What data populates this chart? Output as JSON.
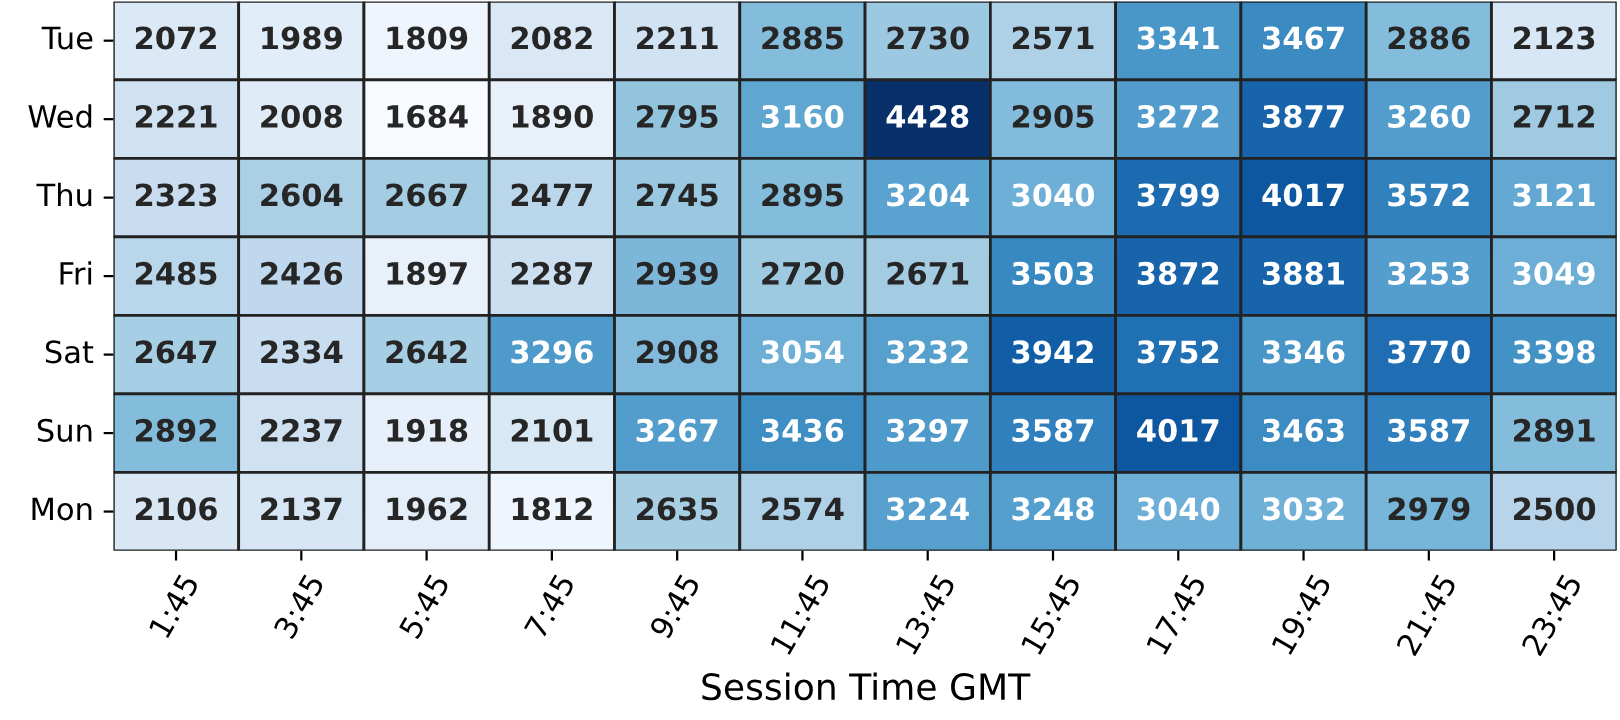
{
  "chart_data": {
    "type": "heatmap",
    "xlabel": "Session Time GMT",
    "categories": [
      "1:45",
      "3:45",
      "5:45",
      "7:45",
      "9:45",
      "11:45",
      "13:45",
      "15:45",
      "17:45",
      "19:45",
      "21:45",
      "23:45"
    ],
    "y_categories": [
      "Tue",
      "Wed",
      "Thu",
      "Fri",
      "Sat",
      "Sun",
      "Mon"
    ],
    "cells": [
      [
        2072,
        1989,
        1809,
        2082,
        2211,
        2885,
        2730,
        2571,
        3341,
        3467,
        2886,
        2123
      ],
      [
        2221,
        2008,
        1684,
        1890,
        2795,
        3160,
        4428,
        2905,
        3272,
        3877,
        3260,
        2712
      ],
      [
        2323,
        2604,
        2667,
        2477,
        2745,
        2895,
        3204,
        3040,
        3799,
        4017,
        3572,
        3121
      ],
      [
        2485,
        2426,
        1897,
        2287,
        2939,
        2720,
        2671,
        3503,
        3872,
        3881,
        3253,
        3049
      ],
      [
        2647,
        2334,
        2642,
        3296,
        2908,
        3054,
        3232,
        3942,
        3752,
        3346,
        3770,
        3398
      ],
      [
        2892,
        2237,
        1918,
        2101,
        3267,
        3436,
        3297,
        3587,
        4017,
        3463,
        3587,
        2891
      ],
      [
        2106,
        2137,
        1962,
        1812,
        2635,
        2574,
        3224,
        3248,
        3040,
        3032,
        2979,
        2500
      ]
    ],
    "data_labels": true
  }
}
